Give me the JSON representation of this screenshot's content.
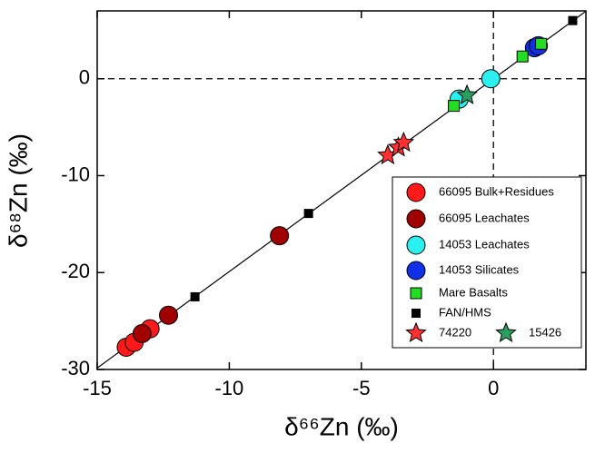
{
  "chart_data": {
    "type": "scatter",
    "x_label": "δ⁶⁶Zn (‰)",
    "y_label": "δ⁶⁸Zn (‰)",
    "xlim": [
      -15,
      3.5
    ],
    "ylim": [
      -30,
      7
    ],
    "xticks": [
      -15,
      -10,
      -5,
      0
    ],
    "yticks": [
      -30,
      -20,
      -10,
      0
    ],
    "reference_lines": {
      "x": 0,
      "y": 0
    },
    "fit_line": {
      "slope": 1.99,
      "intercept": 0
    },
    "series": [
      {
        "name": "66095 Bulk+Residues",
        "color": "#ff1a1a",
        "marker": "circle",
        "x": [
          -13.9,
          -13.6,
          -13.0
        ],
        "y": [
          -27.7,
          -27.2,
          -25.8
        ]
      },
      {
        "name": "66095 Leachates",
        "color": "#a00000",
        "marker": "circle",
        "x": [
          -13.3,
          -12.3,
          -8.1
        ],
        "y": [
          -26.3,
          -24.4,
          -16.2
        ]
      },
      {
        "name": "14053 Leachates",
        "color": "#2af0f0",
        "marker": "circle",
        "x": [
          -1.3,
          -0.1
        ],
        "y": [
          -2.1,
          0.0
        ]
      },
      {
        "name": "14053 Silicates",
        "color": "#1030e8",
        "marker": "circle",
        "x": [
          1.55,
          1.7
        ],
        "y": [
          3.2,
          3.4
        ]
      },
      {
        "name": "Mare Basalts",
        "color": "#22dd22",
        "marker": "square",
        "x": [
          -1.5,
          1.1,
          1.8
        ],
        "y": [
          -2.8,
          2.3,
          3.6
        ]
      },
      {
        "name": "FAN/HMS",
        "color": "#000000",
        "marker": "smallsquare",
        "x": [
          -11.3,
          -7.0,
          3.0
        ],
        "y": [
          -22.5,
          -13.9,
          6.0
        ]
      },
      {
        "name": "74220",
        "color": "#ff3030",
        "marker": "star",
        "x": [
          -4.0,
          -3.6,
          -3.4
        ],
        "y": [
          -7.9,
          -7.1,
          -6.6
        ]
      },
      {
        "name": "15426",
        "color": "#2aa060",
        "marker": "star",
        "x": [
          -1.0
        ],
        "y": [
          -1.7
        ]
      }
    ]
  }
}
